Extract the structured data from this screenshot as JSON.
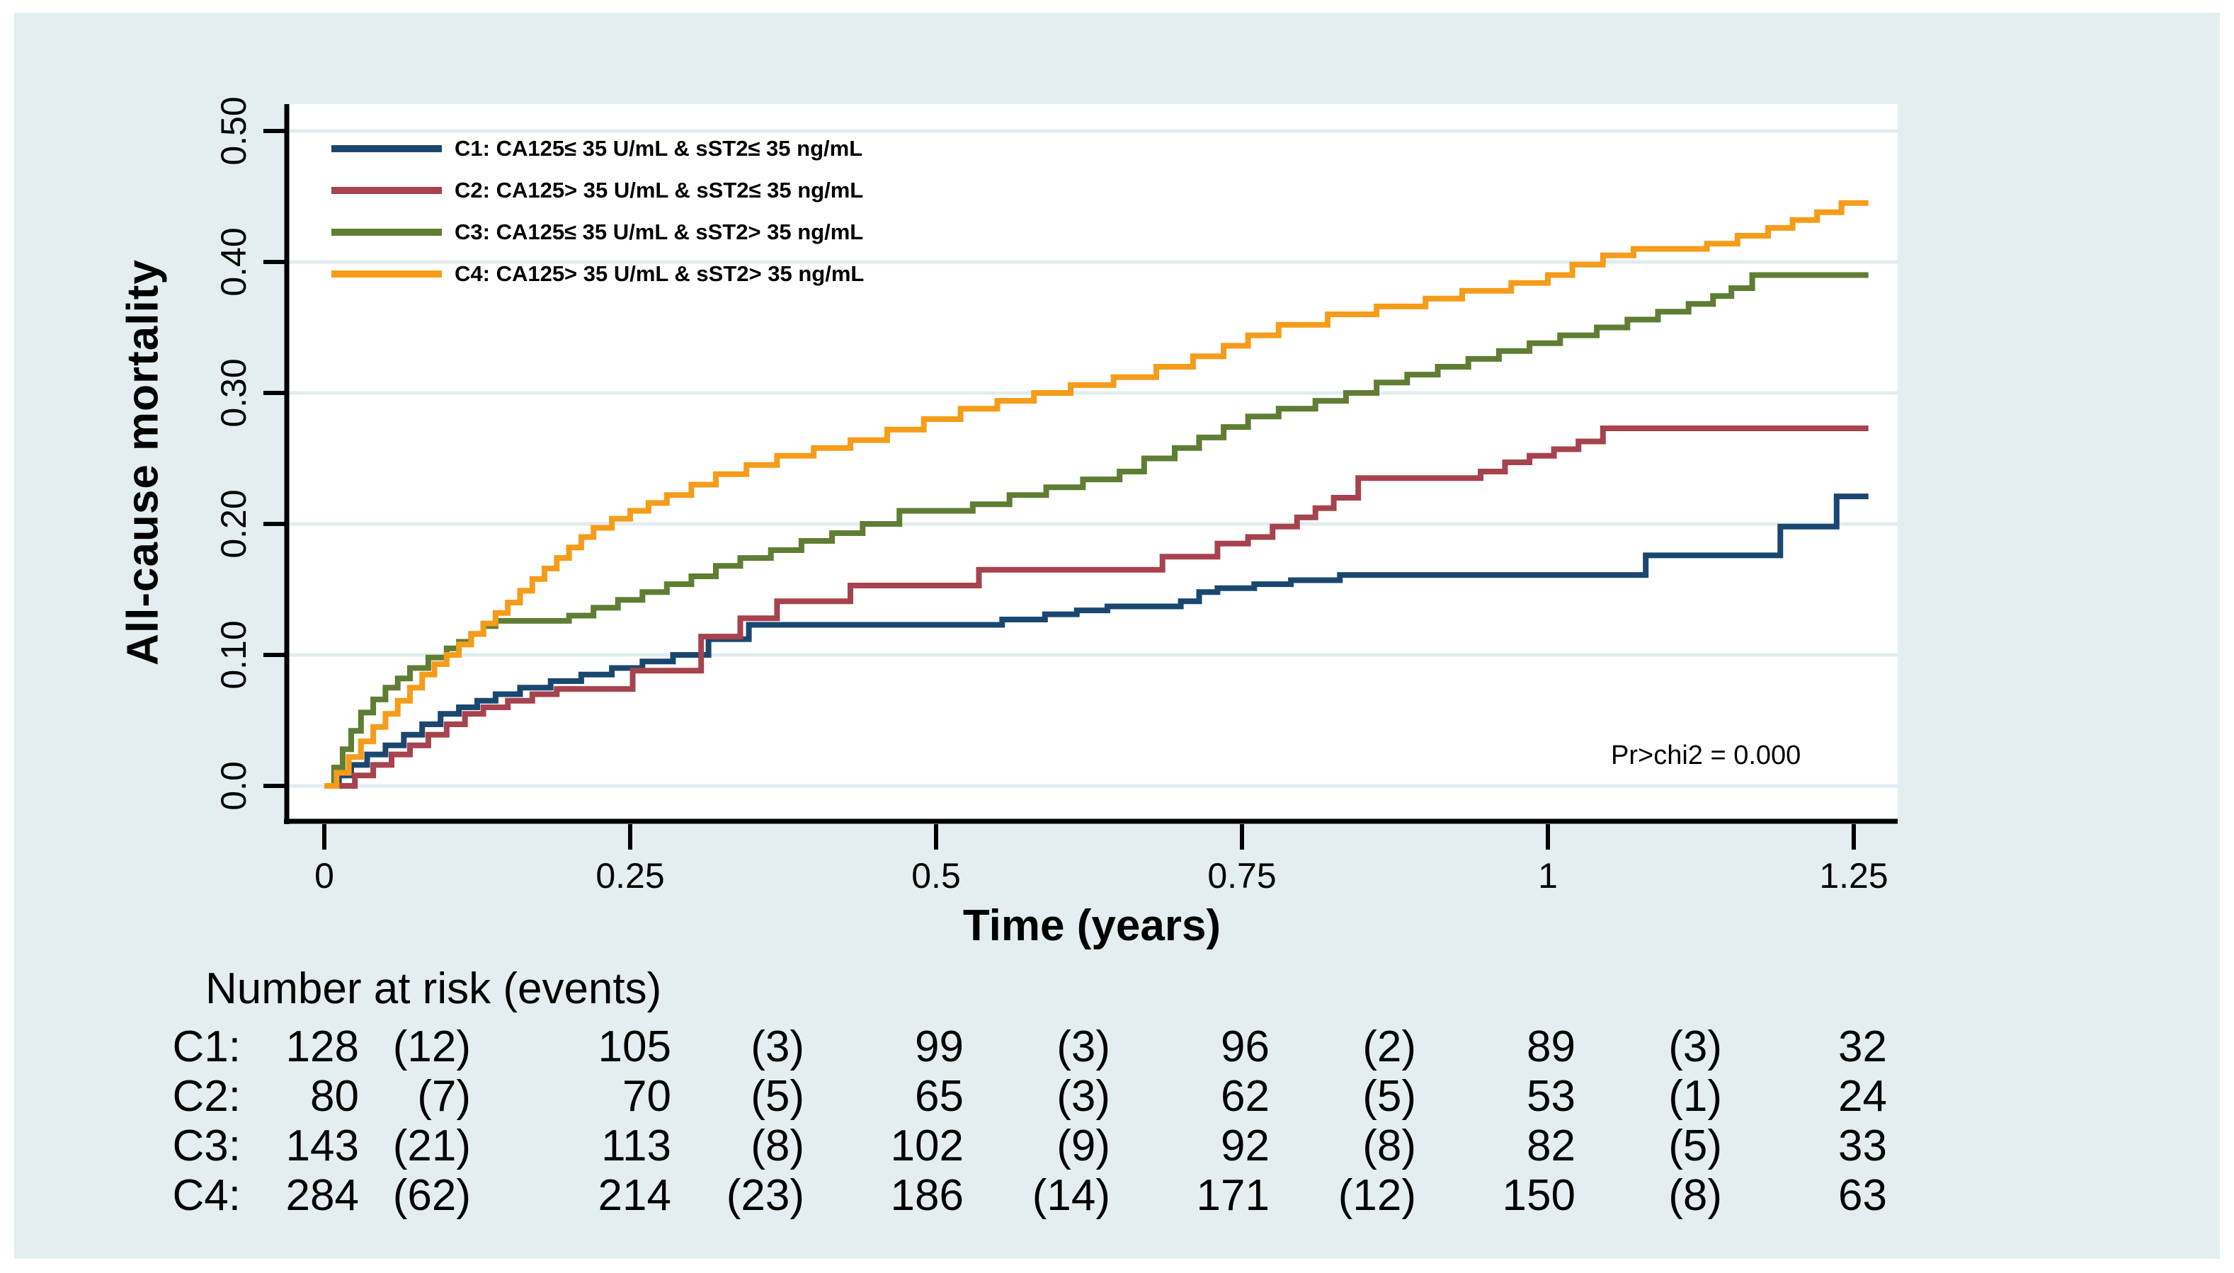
{
  "chart_data": {
    "type": "line",
    "subtype": "step-cumulative-incidence",
    "title": "",
    "xlabel": "Time (years)",
    "ylabel": "All-cause mortality",
    "annotation": "Pr>chi2 = 0.000",
    "xlim": [
      0,
      1.25
    ],
    "ylim": [
      0,
      0.5
    ],
    "grid": "horizontal",
    "legend_position": "top-left-inside",
    "xticks": {
      "values": [
        0,
        0.25,
        0.5,
        0.75,
        1,
        1.25
      ],
      "labels": [
        "0",
        "0.25",
        "0.5",
        "0.75",
        "1",
        "1.25"
      ]
    },
    "yticks": {
      "values": [
        0,
        0.1,
        0.2,
        0.3,
        0.4,
        0.5
      ],
      "labels": [
        "0.0",
        "0.10",
        "0.20",
        "0.30",
        "0.40",
        "0.50"
      ]
    },
    "series": [
      {
        "id": "c1",
        "label": "C1: CA125≤ 35 U/mL & sST2≤ 35 ng/mL",
        "color": "#1a476f",
        "points": [
          [
            0,
            0
          ],
          [
            0.012,
            0.008
          ],
          [
            0.022,
            0.016
          ],
          [
            0.035,
            0.024
          ],
          [
            0.05,
            0.031
          ],
          [
            0.065,
            0.039
          ],
          [
            0.08,
            0.047
          ],
          [
            0.095,
            0.055
          ],
          [
            0.11,
            0.06
          ],
          [
            0.125,
            0.065
          ],
          [
            0.14,
            0.07
          ],
          [
            0.16,
            0.075
          ],
          [
            0.185,
            0.08
          ],
          [
            0.21,
            0.085
          ],
          [
            0.235,
            0.09
          ],
          [
            0.26,
            0.095
          ],
          [
            0.285,
            0.1
          ],
          [
            0.314,
            0.112
          ],
          [
            0.347,
            0.123
          ],
          [
            0.554,
            0.127
          ],
          [
            0.589,
            0.131
          ],
          [
            0.615,
            0.134
          ],
          [
            0.64,
            0.137
          ],
          [
            0.7,
            0.141
          ],
          [
            0.715,
            0.148
          ],
          [
            0.73,
            0.151
          ],
          [
            0.76,
            0.154
          ],
          [
            0.79,
            0.157
          ],
          [
            0.83,
            0.161
          ],
          [
            1.08,
            0.176
          ],
          [
            1.19,
            0.198
          ],
          [
            1.236,
            0.221
          ],
          [
            1.262,
            0.221
          ]
        ]
      },
      {
        "id": "c2",
        "label": "C2: CA125> 35 U/mL & sST2≤ 35 ng/mL",
        "color": "#a6434e",
        "points": [
          [
            0,
            0
          ],
          [
            0.025,
            0.008
          ],
          [
            0.04,
            0.016
          ],
          [
            0.055,
            0.024
          ],
          [
            0.07,
            0.031
          ],
          [
            0.085,
            0.039
          ],
          [
            0.1,
            0.047
          ],
          [
            0.115,
            0.055
          ],
          [
            0.13,
            0.06
          ],
          [
            0.15,
            0.065
          ],
          [
            0.17,
            0.07
          ],
          [
            0.19,
            0.074
          ],
          [
            0.252,
            0.088
          ],
          [
            0.308,
            0.114
          ],
          [
            0.34,
            0.128
          ],
          [
            0.37,
            0.141
          ],
          [
            0.43,
            0.153
          ],
          [
            0.535,
            0.165
          ],
          [
            0.685,
            0.175
          ],
          [
            0.73,
            0.185
          ],
          [
            0.755,
            0.19
          ],
          [
            0.775,
            0.198
          ],
          [
            0.795,
            0.205
          ],
          [
            0.81,
            0.212
          ],
          [
            0.825,
            0.22
          ],
          [
            0.845,
            0.235
          ],
          [
            0.945,
            0.24
          ],
          [
            0.965,
            0.247
          ],
          [
            0.985,
            0.252
          ],
          [
            1.005,
            0.257
          ],
          [
            1.025,
            0.263
          ],
          [
            1.045,
            0.273
          ],
          [
            1.262,
            0.273
          ]
        ]
      },
      {
        "id": "c3",
        "label": "C3: CA125≤ 35 U/mL & sST2> 35 ng/mL",
        "color": "#5f7d33",
        "points": [
          [
            0,
            0
          ],
          [
            0.008,
            0.014
          ],
          [
            0.015,
            0.028
          ],
          [
            0.022,
            0.042
          ],
          [
            0.03,
            0.056
          ],
          [
            0.04,
            0.066
          ],
          [
            0.05,
            0.075
          ],
          [
            0.06,
            0.082
          ],
          [
            0.07,
            0.09
          ],
          [
            0.085,
            0.098
          ],
          [
            0.1,
            0.105
          ],
          [
            0.11,
            0.11
          ],
          [
            0.12,
            0.116
          ],
          [
            0.13,
            0.122
          ],
          [
            0.14,
            0.126
          ],
          [
            0.2,
            0.13
          ],
          [
            0.22,
            0.136
          ],
          [
            0.24,
            0.142
          ],
          [
            0.26,
            0.148
          ],
          [
            0.28,
            0.154
          ],
          [
            0.3,
            0.16
          ],
          [
            0.32,
            0.168
          ],
          [
            0.34,
            0.174
          ],
          [
            0.365,
            0.18
          ],
          [
            0.39,
            0.187
          ],
          [
            0.415,
            0.193
          ],
          [
            0.44,
            0.2
          ],
          [
            0.47,
            0.21
          ],
          [
            0.53,
            0.215
          ],
          [
            0.56,
            0.222
          ],
          [
            0.59,
            0.228
          ],
          [
            0.62,
            0.234
          ],
          [
            0.65,
            0.24
          ],
          [
            0.67,
            0.25
          ],
          [
            0.695,
            0.258
          ],
          [
            0.715,
            0.266
          ],
          [
            0.735,
            0.274
          ],
          [
            0.755,
            0.282
          ],
          [
            0.78,
            0.288
          ],
          [
            0.81,
            0.294
          ],
          [
            0.835,
            0.3
          ],
          [
            0.86,
            0.308
          ],
          [
            0.885,
            0.314
          ],
          [
            0.91,
            0.32
          ],
          [
            0.935,
            0.326
          ],
          [
            0.96,
            0.332
          ],
          [
            0.985,
            0.338
          ],
          [
            1.01,
            0.344
          ],
          [
            1.04,
            0.35
          ],
          [
            1.065,
            0.356
          ],
          [
            1.09,
            0.362
          ],
          [
            1.115,
            0.368
          ],
          [
            1.135,
            0.374
          ],
          [
            1.15,
            0.38
          ],
          [
            1.167,
            0.39
          ],
          [
            1.262,
            0.39
          ]
        ]
      },
      {
        "id": "c4",
        "label": "C4: CA125> 35 U/mL & sST2> 35 ng/mL",
        "color": "#f59c1a",
        "points": [
          [
            0,
            0
          ],
          [
            0.01,
            0.01
          ],
          [
            0.02,
            0.022
          ],
          [
            0.03,
            0.034
          ],
          [
            0.04,
            0.045
          ],
          [
            0.05,
            0.055
          ],
          [
            0.06,
            0.065
          ],
          [
            0.07,
            0.075
          ],
          [
            0.08,
            0.085
          ],
          [
            0.09,
            0.093
          ],
          [
            0.1,
            0.1
          ],
          [
            0.11,
            0.108
          ],
          [
            0.12,
            0.116
          ],
          [
            0.13,
            0.124
          ],
          [
            0.14,
            0.132
          ],
          [
            0.15,
            0.14
          ],
          [
            0.16,
            0.149
          ],
          [
            0.17,
            0.158
          ],
          [
            0.18,
            0.166
          ],
          [
            0.19,
            0.174
          ],
          [
            0.2,
            0.182
          ],
          [
            0.21,
            0.19
          ],
          [
            0.22,
            0.197
          ],
          [
            0.235,
            0.204
          ],
          [
            0.25,
            0.21
          ],
          [
            0.265,
            0.216
          ],
          [
            0.28,
            0.222
          ],
          [
            0.3,
            0.23
          ],
          [
            0.32,
            0.238
          ],
          [
            0.345,
            0.245
          ],
          [
            0.37,
            0.252
          ],
          [
            0.4,
            0.258
          ],
          [
            0.43,
            0.264
          ],
          [
            0.46,
            0.272
          ],
          [
            0.49,
            0.28
          ],
          [
            0.52,
            0.288
          ],
          [
            0.55,
            0.294
          ],
          [
            0.58,
            0.3
          ],
          [
            0.61,
            0.306
          ],
          [
            0.645,
            0.312
          ],
          [
            0.68,
            0.32
          ],
          [
            0.71,
            0.328
          ],
          [
            0.735,
            0.336
          ],
          [
            0.755,
            0.344
          ],
          [
            0.78,
            0.352
          ],
          [
            0.82,
            0.36
          ],
          [
            0.86,
            0.366
          ],
          [
            0.9,
            0.372
          ],
          [
            0.93,
            0.378
          ],
          [
            0.97,
            0.384
          ],
          [
            1.0,
            0.39
          ],
          [
            1.02,
            0.398
          ],
          [
            1.045,
            0.405
          ],
          [
            1.07,
            0.41
          ],
          [
            1.13,
            0.414
          ],
          [
            1.155,
            0.42
          ],
          [
            1.18,
            0.426
          ],
          [
            1.2,
            0.432
          ],
          [
            1.22,
            0.438
          ],
          [
            1.24,
            0.445
          ],
          [
            1.262,
            0.445
          ]
        ]
      }
    ]
  },
  "risk_table": {
    "header": "Number at risk (events)",
    "time_points": [
      0,
      0.25,
      0.5,
      0.75,
      1,
      1.25
    ],
    "rows": [
      {
        "id": "c1",
        "label": "C1:",
        "values": [
          "128",
          "(12)",
          "105",
          "(3)",
          "99",
          "(3)",
          "96",
          "(2)",
          "89",
          "(3)",
          "32"
        ]
      },
      {
        "id": "c2",
        "label": "C2:",
        "values": [
          "80",
          "(7)",
          "70",
          "(5)",
          "65",
          "(3)",
          "62",
          "(5)",
          "53",
          "(1)",
          "24"
        ]
      },
      {
        "id": "c3",
        "label": "C3:",
        "values": [
          "143",
          "(21)",
          "113",
          "(8)",
          "102",
          "(9)",
          "92",
          "(8)",
          "82",
          "(5)",
          "33"
        ]
      },
      {
        "id": "c4",
        "label": "C4:",
        "values": [
          "284",
          "(62)",
          "214",
          "(23)",
          "186",
          "(14)",
          "171",
          "(12)",
          "150",
          "(8)",
          "63"
        ]
      }
    ]
  },
  "colors": {
    "panel_background": "#e4eef1",
    "plot_background": "#ffffff",
    "gridline": "#e2ecef",
    "axis": "#000000"
  }
}
